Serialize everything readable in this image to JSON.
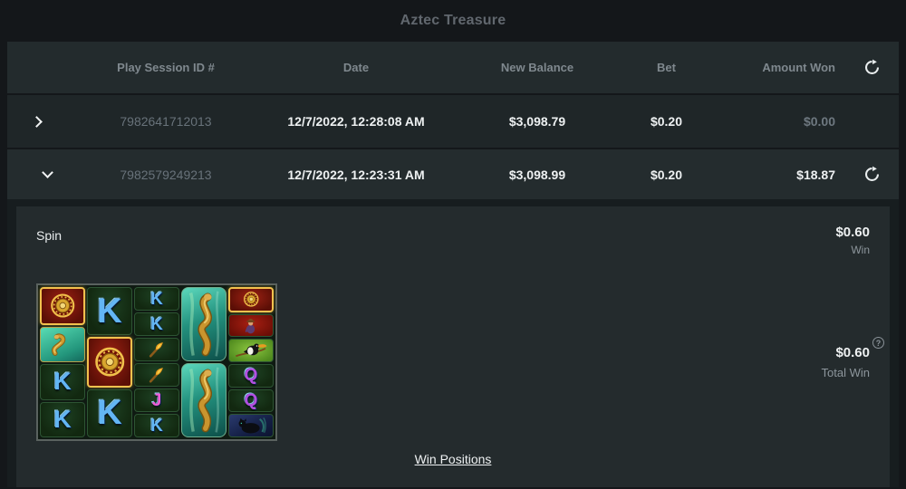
{
  "title": "Aztec Treasure",
  "table": {
    "headers": {
      "session_id": "Play Session ID #",
      "date": "Date",
      "new_balance": "New Balance",
      "bet": "Bet",
      "amount_won": "Amount Won"
    },
    "rows": [
      {
        "session_id": "7982641712013",
        "date": "12/7/2022, 12:28:08 AM",
        "new_balance": "$3,098.79",
        "bet": "$0.20",
        "amount_won": "$0.00"
      },
      {
        "session_id": "7982579249213",
        "date": "12/7/2022, 12:23:31 AM",
        "new_balance": "$3,098.99",
        "bet": "$0.20",
        "amount_won": "$18.87"
      }
    ]
  },
  "detail": {
    "action_label": "Spin",
    "win_amount": "$0.60",
    "win_label": "Win",
    "total_win_amount": "$0.60",
    "total_win_label": "Total Win",
    "help_icon": "?",
    "win_positions_link": "Win Positions"
  },
  "colors": {
    "accent_gold": "#f2c14e",
    "letter_blue": "#63b6f5",
    "letter_pink": "#ee5fd5",
    "letter_purple": "#b44fe0",
    "muted_text": "#8d969c"
  },
  "slot_grid": {
    "symbols": {
      "K": {
        "kind": "letter",
        "char": "K",
        "color": "#63b6f5"
      },
      "J": {
        "kind": "letter",
        "char": "J",
        "color": "#ee5fd5"
      },
      "Q": {
        "kind": "letter",
        "char": "Q",
        "color": "#b44fe0"
      },
      "medallion": {
        "kind": "icon"
      },
      "snake": {
        "kind": "icon"
      },
      "snake_tall": {
        "kind": "icon"
      },
      "torch": {
        "kind": "icon"
      },
      "explorer": {
        "kind": "icon"
      },
      "toucan": {
        "kind": "icon"
      },
      "panther": {
        "kind": "icon"
      }
    },
    "columns": [
      {
        "cells": [
          {
            "symbol": "medallion",
            "highlight": true
          },
          {
            "symbol": "snake"
          },
          {
            "symbol": "K"
          },
          {
            "symbol": "K"
          }
        ]
      },
      {
        "cells": [
          {
            "symbol": "K"
          },
          {
            "symbol": "medallion",
            "highlight": true
          },
          {
            "symbol": "K"
          }
        ]
      },
      {
        "cells": [
          {
            "symbol": "K"
          },
          {
            "symbol": "K"
          },
          {
            "symbol": "torch"
          },
          {
            "symbol": "torch"
          },
          {
            "symbol": "J"
          },
          {
            "symbol": "K"
          }
        ]
      },
      {
        "cells": [
          {
            "symbol": "snake_tall"
          },
          {
            "symbol": "snake_tall"
          }
        ]
      },
      {
        "cells": [
          {
            "symbol": "medallion",
            "highlight": true
          },
          {
            "symbol": "explorer"
          },
          {
            "symbol": "toucan"
          },
          {
            "symbol": "Q"
          },
          {
            "symbol": "Q"
          },
          {
            "symbol": "panther"
          }
        ]
      }
    ]
  }
}
